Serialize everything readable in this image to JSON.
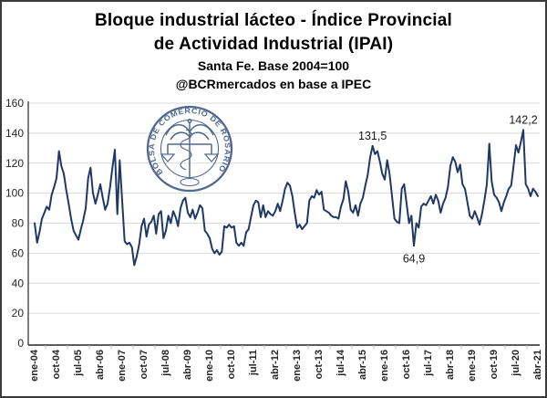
{
  "header": {
    "title_line1": "Bloque industrial lácteo - Índice Provincial",
    "title_line2": "de Actividad Industrial (IPAI)",
    "subtitle": "Santa Fe. Base 2004=100",
    "credit": "@BCRmercados en base a IPEC"
  },
  "watermark": {
    "ring_text": "BOLSA DE COMERCIO DE ROSARIO"
  },
  "chart_data": {
    "type": "line",
    "title": "Bloque industrial lácteo - Índice Provincial de Actividad Industrial (IPAI)",
    "subtitle": "Santa Fe. Base 2004=100",
    "source": "@BCRmercados en base a IPEC",
    "xlabel": "",
    "ylabel": "",
    "ylim": [
      0,
      160
    ],
    "y_ticks": [
      0,
      20,
      40,
      60,
      80,
      100,
      120,
      140,
      160
    ],
    "grid": "horizontal",
    "legend_position": "none",
    "n_months": 208,
    "x_start_label": "ene-04",
    "x_end_label": "abr-21",
    "x_tick_step_months": 9,
    "x_tick_labels": [
      "ene-04",
      "oct-04",
      "jul-05",
      "abr-06",
      "ene-07",
      "oct-07",
      "jul-08",
      "abr-09",
      "ene-10",
      "oct-10",
      "jul-11",
      "abr-12",
      "ene-13",
      "oct-13",
      "jul-14",
      "abr-15",
      "ene-16",
      "oct-16",
      "jul-17",
      "abr-18",
      "ene-19",
      "oct-19",
      "jul-20",
      "abr-21"
    ],
    "series": [
      {
        "name": "IPAI bloque industrial lácteo",
        "color": "#1f3864",
        "values": [
          80,
          67,
          74,
          83,
          87,
          91,
          89,
          99,
          104,
          110,
          128,
          118,
          113,
          102,
          93,
          83,
          75,
          72,
          69,
          76,
          82,
          90,
          110,
          117,
          100,
          93,
          99,
          106,
          97,
          89,
          93,
          104,
          117,
          129,
          86,
          122,
          95,
          68,
          66,
          67,
          64,
          52,
          58,
          66,
          78,
          83,
          71,
          79,
          81,
          85,
          73,
          86,
          88,
          70,
          75,
          85,
          80,
          88,
          84,
          78,
          90,
          95,
          97,
          87,
          84,
          89,
          83,
          87,
          92,
          90,
          75,
          73,
          70,
          63,
          60,
          62,
          59,
          61,
          78,
          77,
          79,
          77,
          78,
          67,
          65,
          67,
          65,
          74,
          76,
          84,
          92,
          95,
          94,
          84,
          92,
          84,
          88,
          86,
          85,
          88,
          93,
          88,
          95,
          103,
          107,
          105,
          98,
          87,
          77,
          79,
          76,
          78,
          80,
          95,
          98,
          97,
          102,
          99,
          101,
          89,
          88,
          87,
          85,
          84,
          84,
          83,
          91,
          96,
          108,
          101,
          89,
          87,
          92,
          85,
          93,
          97,
          105,
          112,
          124,
          131.5,
          126,
          128,
          121,
          113,
          109,
          122,
          113,
          98,
          83,
          81,
          80,
          103,
          106,
          93,
          80,
          85,
          64.9,
          80,
          77,
          91,
          93,
          92,
          95,
          98,
          93,
          99,
          95,
          87,
          93,
          97,
          104,
          118,
          124,
          121,
          114,
          119,
          106,
          103,
          94,
          85,
          83,
          88,
          84,
          79,
          86,
          95,
          106,
          133,
          108,
          99,
          97,
          94,
          88,
          94,
          98,
          103,
          105,
          118,
          132,
          127,
          134,
          142.2,
          106,
          103,
          98,
          103,
          101,
          98
        ]
      }
    ],
    "annotations": [
      {
        "text": "131,5",
        "month": 139,
        "value": 131.5,
        "position": "above"
      },
      {
        "text": "64,9",
        "month": 156,
        "value": 64.9,
        "position": "below"
      },
      {
        "text": "142,2",
        "month": 201,
        "value": 142.2,
        "position": "above"
      }
    ],
    "colors": {
      "line": "#1f3864",
      "grid": "#d9d9d9",
      "axis": "#262626",
      "tick_mark": "#bfbfbf",
      "tick_label": "#262626",
      "annotation": "#1a1a1a",
      "watermark": "#33507e"
    }
  }
}
